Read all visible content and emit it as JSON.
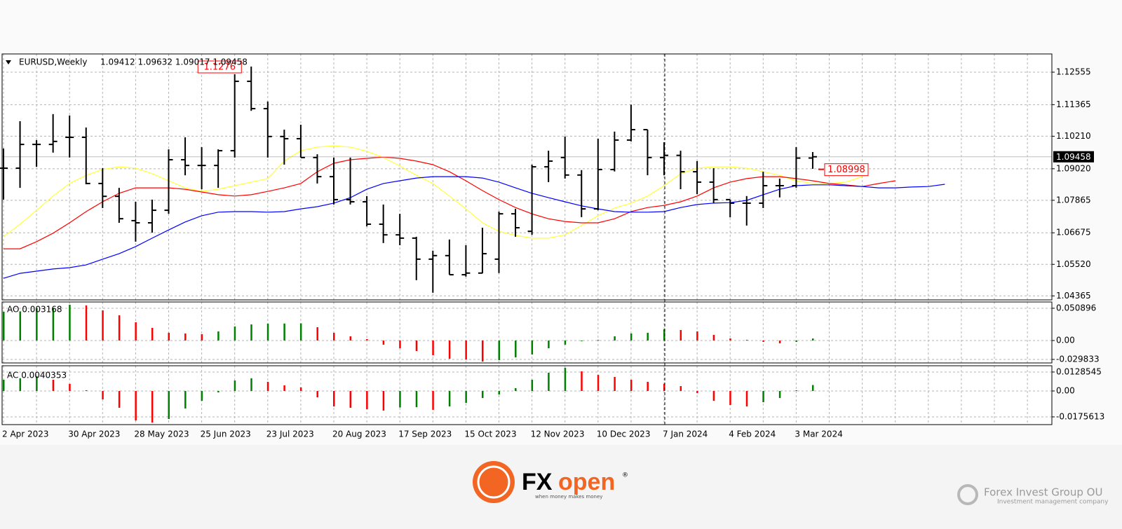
{
  "chart_data": [
    {
      "type": "ohlc",
      "title": "EURUSD,Weekly",
      "header_values": "1.09412 1.09632 1.09017 1.09458",
      "color": "#000000",
      "categories": [
        "2 Apr 2023",
        null,
        null,
        null,
        "30 Apr 2023",
        null,
        null,
        null,
        "28 May 2023",
        null,
        null,
        null,
        "25 Jun 2023",
        null,
        null,
        null,
        "23 Jul 2023",
        null,
        null,
        null,
        "20 Aug 2023",
        null,
        null,
        null,
        "17 Sep 2023",
        null,
        null,
        null,
        "15 Oct 2023",
        null,
        null,
        null,
        "12 Nov 2023",
        null,
        null,
        null,
        "10 Dec 2023",
        null,
        null,
        null,
        "7 Jan 2024",
        null,
        null,
        null,
        "4 Feb 2024",
        null,
        null,
        null,
        "3 Mar 2024",
        null,
        null,
        null,
        null,
        null,
        null,
        null,
        null,
        null
      ],
      "open": [
        1.0904,
        1.0904,
        1.0991,
        1.0991,
        1.1017,
        1.1017,
        1.0848,
        1.0801,
        1.0712,
        1.0704,
        1.075,
        1.0935,
        1.0914,
        1.0914,
        1.0968,
        1.1222,
        1.1122,
        1.102,
        1.1012,
        1.0943,
        1.0873,
        1.0789,
        1.0781,
        1.0699,
        1.066,
        1.0648,
        1.0571,
        1.0584,
        1.0514,
        1.052,
        1.0571,
        1.0737,
        1.0673,
        1.0909,
        1.0943,
        1.0879,
        1.0755,
        1.0899,
        1.1007,
        1.1045,
        1.0943,
        1.0951,
        1.0891,
        1.0853,
        1.0789,
        1.0776,
        1.0776,
        1.084,
        1.084,
        1.09412,
        null,
        null,
        null,
        null,
        null,
        null,
        null,
        null
      ],
      "high": [
        1.0976,
        1.1076,
        1.1007,
        1.1102,
        1.1097,
        1.1053,
        1.0904,
        1.0832,
        1.0781,
        1.0789,
        1.0973,
        1.1017,
        1.0981,
        1.0973,
        1.1248,
        1.1276,
        1.1148,
        1.1045,
        1.1063,
        1.0955,
        1.0943,
        1.0943,
        1.0802,
        1.0771,
        1.0737,
        1.0653,
        1.0602,
        1.0643,
        1.0622,
        1.0686,
        1.0745,
        1.0755,
        1.0917,
        1.0968,
        1.102,
        1.0897,
        1.1012,
        1.1038,
        1.11367,
        1.1045,
        1.0999,
        1.0968,
        1.093,
        1.0904,
        1.0789,
        1.0802,
        1.0891,
        1.0866,
        1.0981,
        1.09632,
        null,
        null,
        null,
        null,
        null,
        null,
        null,
        null
      ],
      "low": [
        1.0789,
        1.0832,
        1.0909,
        1.0961,
        1.0943,
        1.0845,
        1.0758,
        1.0704,
        1.0635,
        1.0668,
        1.0737,
        1.0878,
        1.0827,
        1.0832,
        1.0943,
        1.1114,
        1.0943,
        1.0917,
        1.0943,
        1.0848,
        1.0771,
        1.0771,
        1.0691,
        1.063,
        1.0622,
        1.0494,
        1.0448,
        1.0514,
        1.0507,
        1.0519,
        1.052,
        1.0653,
        1.066,
        1.0853,
        1.0866,
        1.0725,
        1.075,
        1.0892,
        1.1002,
        1.0878,
        1.0878,
        1.0827,
        1.0809,
        1.0776,
        1.0724,
        1.0694,
        1.0758,
        1.0797,
        1.0832,
        1.09017,
        null,
        null,
        null,
        null,
        null,
        null,
        null,
        null
      ],
      "close": [
        1.0904,
        1.0991,
        1.0991,
        1.1002,
        1.1017,
        1.0848,
        1.0801,
        1.0719,
        1.0704,
        1.075,
        1.0935,
        1.0914,
        1.0914,
        1.0968,
        1.1222,
        1.1122,
        1.102,
        1.1012,
        1.0943,
        1.0873,
        1.0789,
        1.0781,
        1.0699,
        1.066,
        1.0648,
        1.0571,
        1.0584,
        1.0514,
        1.052,
        1.0591,
        1.0737,
        1.0686,
        1.0909,
        1.093,
        1.0879,
        1.0755,
        1.0899,
        1.1007,
        1.1045,
        1.0943,
        1.0951,
        1.0891,
        1.0853,
        1.0789,
        1.0776,
        1.0776,
        1.084,
        1.084,
        1.0941,
        1.09458,
        null,
        null,
        null,
        null,
        null,
        null,
        null,
        null
      ],
      "lines": [
        {
          "color": "#ffff3c",
          "values": [
            1.0653,
            1.0699,
            1.075,
            1.0802,
            1.0848,
            1.0878,
            1.0899,
            1.0909,
            1.0904,
            1.0884,
            1.0858,
            1.0832,
            1.0819,
            1.0827,
            1.084,
            1.0853,
            1.0866,
            1.093,
            1.0968,
            1.0981,
            1.0986,
            1.0981,
            1.0966,
            1.0943,
            1.0912,
            1.0878,
            1.0848,
            1.0802,
            1.0755,
            1.0704,
            1.0673,
            1.0658,
            1.0648,
            1.0648,
            1.066,
            1.0694,
            1.073,
            1.0758,
            1.0776,
            1.0802,
            1.084,
            1.0884,
            1.0904,
            1.0909,
            1.0909,
            1.0904,
            1.0891,
            1.0878,
            1.0858,
            1.0848,
            1.0848,
            1.0853,
            1.0873,
            null,
            null,
            null,
            null,
            null
          ]
        },
        {
          "color": "#ff0000",
          "values": [
            1.0609,
            1.0609,
            1.0635,
            1.0666,
            1.0704,
            1.0745,
            1.0781,
            1.0812,
            1.0832,
            1.0832,
            1.0832,
            1.0827,
            1.0817,
            1.0807,
            1.0802,
            1.0807,
            1.0819,
            1.0832,
            1.0848,
            1.0891,
            1.0922,
            1.0935,
            1.094,
            1.0945,
            1.094,
            1.093,
            1.0917,
            1.0891,
            1.0858,
            1.0822,
            1.0789,
            1.076,
            1.0737,
            1.0719,
            1.0709,
            1.0704,
            1.0704,
            1.0719,
            1.0745,
            1.076,
            1.0768,
            1.0781,
            1.0802,
            1.0832,
            1.0853,
            1.0866,
            1.0873,
            1.0873,
            1.0866,
            1.0858,
            1.0848,
            1.0843,
            1.0837,
            1.0848,
            1.0858,
            null,
            null,
            null
          ]
        },
        {
          "color": "#0000ff",
          "values": [
            1.0501,
            1.0519,
            1.0527,
            1.0535,
            1.054,
            1.055,
            1.0571,
            1.0591,
            1.0617,
            1.0648,
            1.0678,
            1.0707,
            1.073,
            1.0743,
            1.0745,
            1.0745,
            1.0743,
            1.0745,
            1.0755,
            1.0763,
            1.0776,
            1.0796,
            1.0827,
            1.0848,
            1.0858,
            1.0868,
            1.0873,
            1.0873,
            1.0873,
            1.0868,
            1.0853,
            1.0832,
            1.0812,
            1.0796,
            1.0781,
            1.0766,
            1.0755,
            1.0745,
            1.0743,
            1.0743,
            1.0745,
            1.076,
            1.0771,
            1.0776,
            1.0778,
            1.0786,
            1.0807,
            1.0827,
            1.084,
            1.0843,
            1.0843,
            1.084,
            1.0837,
            1.0832,
            1.0832,
            1.0835,
            1.0837,
            1.0845
          ]
        }
      ],
      "price_labels": [
        1.08998
      ],
      "annotation_color": "#ff0000",
      "ylim": [
        1.04219,
        1.13222
      ],
      "yticks": [
        1.12555,
        1.11365,
        {
          "value": 1.1021,
          "label": "1.10210"
        },
        {
          "value": 1.0902,
          "label": "1.09020"
        },
        1.07865,
        1.06675,
        {
          "value": 1.0552,
          "label": "1.05520"
        },
        1.04365
      ],
      "grid": true
    },
    {
      "type": "histogram",
      "title": "AO 0.003168",
      "up_color": "#008000",
      "down_color": "#ff0000",
      "values": [
        0.0454,
        0.046,
        0.0509,
        0.0515,
        0.0564,
        0.0553,
        0.0476,
        0.0398,
        0.0288,
        0.0199,
        0.0122,
        0.0111,
        0.01,
        0.0144,
        0.0221,
        0.0254,
        0.0266,
        0.0268,
        0.027,
        0.021,
        0.0122,
        0.0066,
        0.0022,
        -0.0066,
        -0.0122,
        -0.0166,
        -0.0232,
        -0.0288,
        -0.0299,
        -0.0332,
        -0.031,
        -0.0266,
        -0.0221,
        -0.0122,
        -0.0066,
        -0.0011,
        0.0011,
        0.0066,
        0.0111,
        0.0122,
        0.0177,
        0.0166,
        0.0144,
        0.0089,
        0.0033,
        0.0011,
        -0.0022,
        -0.0044,
        -0.0022,
        0.003168,
        null,
        null,
        null,
        null,
        null,
        null,
        null,
        null
      ],
      "ylim": [
        -0.0354,
        0.0608
      ],
      "yticks": [
        0.050896,
        {
          "value": 0,
          "label": "0.00"
        },
        -0.029833
      ],
      "grid": true
    },
    {
      "type": "histogram",
      "title": "AC 0.0040353",
      "up_color": "#008000",
      "down_color": "#ff0000",
      "values": [
        0.0076,
        0.0086,
        0.01,
        0.0076,
        0.0048,
        0.0005,
        -0.0057,
        -0.0114,
        -0.02,
        -0.0214,
        -0.019,
        -0.0119,
        -0.0067,
        -0.001,
        0.0071,
        0.0086,
        0.0062,
        0.0038,
        0.0024,
        -0.0043,
        -0.0105,
        -0.0114,
        -0.0124,
        -0.0133,
        -0.0112,
        -0.011,
        -0.0128,
        -0.0105,
        -0.0081,
        -0.0048,
        -0.0024,
        0.0019,
        0.0076,
        0.0124,
        0.0157,
        0.0133,
        0.0109,
        0.0095,
        0.0076,
        0.0062,
        0.0048,
        0.0033,
        -0.0014,
        -0.0067,
        -0.0095,
        -0.0105,
        -0.0076,
        -0.0048,
        0.0005,
        0.0040353,
        null,
        null,
        null,
        null,
        null,
        null,
        null,
        null
      ],
      "ylim": [
        -0.0228,
        0.0171
      ],
      "yticks": [
        0.0128545,
        {
          "value": 0,
          "label": "0.00"
        },
        -0.0175613
      ],
      "grid": true
    }
  ],
  "footer": {
    "brand_fx": "FX",
    "brand_open": "open",
    "registered": "®",
    "tagline": "when money makes money",
    "company": "Forex Invest Group OU",
    "company_sub": "Investment management company"
  }
}
